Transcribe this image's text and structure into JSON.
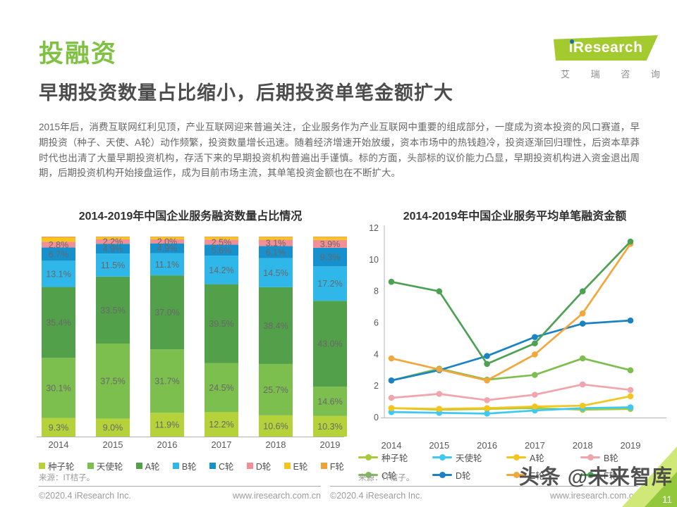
{
  "page": {
    "section_label": "投融资",
    "headline": "早期投资数量占比缩小，后期投资单笔金额扩大",
    "body_text": "2015年后，消费互联网红利见顶，产业互联网迎来普遍关注，企业服务作为产业互联网中重要的组成部分，一度成为资本投资的风口赛道，早期投资（种子、天使、A轮）动作频繁，投资数量增长迅速。随着经济增速开始放缓，资本市场中的热钱趋冷，投资逐渐回归理性，后资本草莽时代也出清了大量早期投资机构，存活下来的早期投资机构普遍出手谨慎。标的方面，头部标的议价能力凸显，早期投资机构进入资金退出周期，后期投资机构开始接盘运作，成为目前市场主流，其单笔投资金额也在不断扩大。",
    "watermark": "头条 @未来智库",
    "page_number": "11"
  },
  "logo": {
    "brand": "iResearch",
    "brand_cn": "艾 瑞 咨 询"
  },
  "source_note": "来源：IT桔子。",
  "footer": {
    "copyright": "©2020.4 iResearch Inc.",
    "website": "www.iresearch.com.cn"
  },
  "chart_data": [
    {
      "type": "bar",
      "stacked": true,
      "title": "2014-2019年中国企业服务融资数量占比情况",
      "unit": "%",
      "categories": [
        "2014",
        "2015",
        "2016",
        "2017",
        "2018",
        "2019"
      ],
      "series": [
        {
          "name": "种子轮",
          "color": "#b5d23a",
          "label_visible": true,
          "values": [
            9.3,
            9.0,
            11.9,
            12.2,
            10.6,
            10.3
          ]
        },
        {
          "name": "天使轮",
          "color": "#7dbf4f",
          "label_visible": true,
          "values": [
            30.1,
            37.5,
            31.7,
            24.5,
            25.7,
            14.6
          ]
        },
        {
          "name": "A轮",
          "color": "#53a04b",
          "label_visible": true,
          "values": [
            35.4,
            33.5,
            37.0,
            39.5,
            38.4,
            43.0
          ]
        },
        {
          "name": "B轮",
          "color": "#2eb7e8",
          "label_visible": true,
          "values": [
            13.1,
            11.5,
            11.1,
            14.2,
            14.5,
            17.2
          ]
        },
        {
          "name": "C轮",
          "color": "#1691ce",
          "label_visible": true,
          "values": [
            6.7,
            4.9,
            4.9,
            5.6,
            6.1,
            9.3
          ]
        },
        {
          "name": "D轮",
          "color": "#f18e96",
          "label_visible": true,
          "values": [
            2.8,
            2.2,
            2.0,
            2.5,
            3.1,
            3.9
          ]
        },
        {
          "name": "E轮",
          "color": "#f6c51c",
          "label_visible": false,
          "values": [
            2.0,
            1.0,
            1.0,
            1.1,
            1.2,
            1.3
          ]
        },
        {
          "name": "F轮",
          "color": "#f0a23a",
          "label_visible": false,
          "values": [
            0.6,
            0.4,
            0.4,
            0.4,
            0.4,
            0.4
          ]
        }
      ]
    },
    {
      "type": "line",
      "title": "2014-2019年中国企业服务平均单笔融资金额",
      "x": [
        "2014",
        "2015",
        "2016",
        "2017",
        "2018",
        "2019"
      ],
      "ylim": [
        0,
        12
      ],
      "yticks": [
        0,
        2,
        4,
        6,
        8,
        10,
        12
      ],
      "grid": false,
      "legend_position": "bottom",
      "series": [
        {
          "name": "种子轮",
          "color": "#a9ca3a",
          "values": [
            0.6,
            0.5,
            0.55,
            0.6,
            0.5,
            0.55
          ]
        },
        {
          "name": "天使轮",
          "color": "#3ec9f0",
          "values": [
            0.35,
            0.3,
            0.25,
            0.45,
            0.6,
            0.65
          ]
        },
        {
          "name": "A轮",
          "color": "#f3c51e",
          "values": [
            0.6,
            0.55,
            0.6,
            0.7,
            0.75,
            1.35
          ]
        },
        {
          "name": "B轮",
          "color": "#f2a4ad",
          "values": [
            1.25,
            1.5,
            1.1,
            1.45,
            2.1,
            1.75
          ]
        },
        {
          "name": "C轮",
          "color": "#7dbf4f",
          "values": [
            2.35,
            3.1,
            2.4,
            2.7,
            3.75,
            3.0
          ]
        },
        {
          "name": "D轮",
          "color": "#1b82c4",
          "values": [
            2.35,
            3.0,
            3.9,
            5.1,
            5.95,
            6.15
          ]
        },
        {
          "name": "E轮",
          "color": "#f2a73c",
          "values": [
            3.75,
            3.05,
            2.35,
            4.0,
            6.6,
            11.0
          ]
        },
        {
          "name": "F轮",
          "color": "#4ca152",
          "values": [
            8.6,
            8.0,
            3.4,
            4.7,
            8.0,
            11.15
          ]
        }
      ]
    }
  ]
}
